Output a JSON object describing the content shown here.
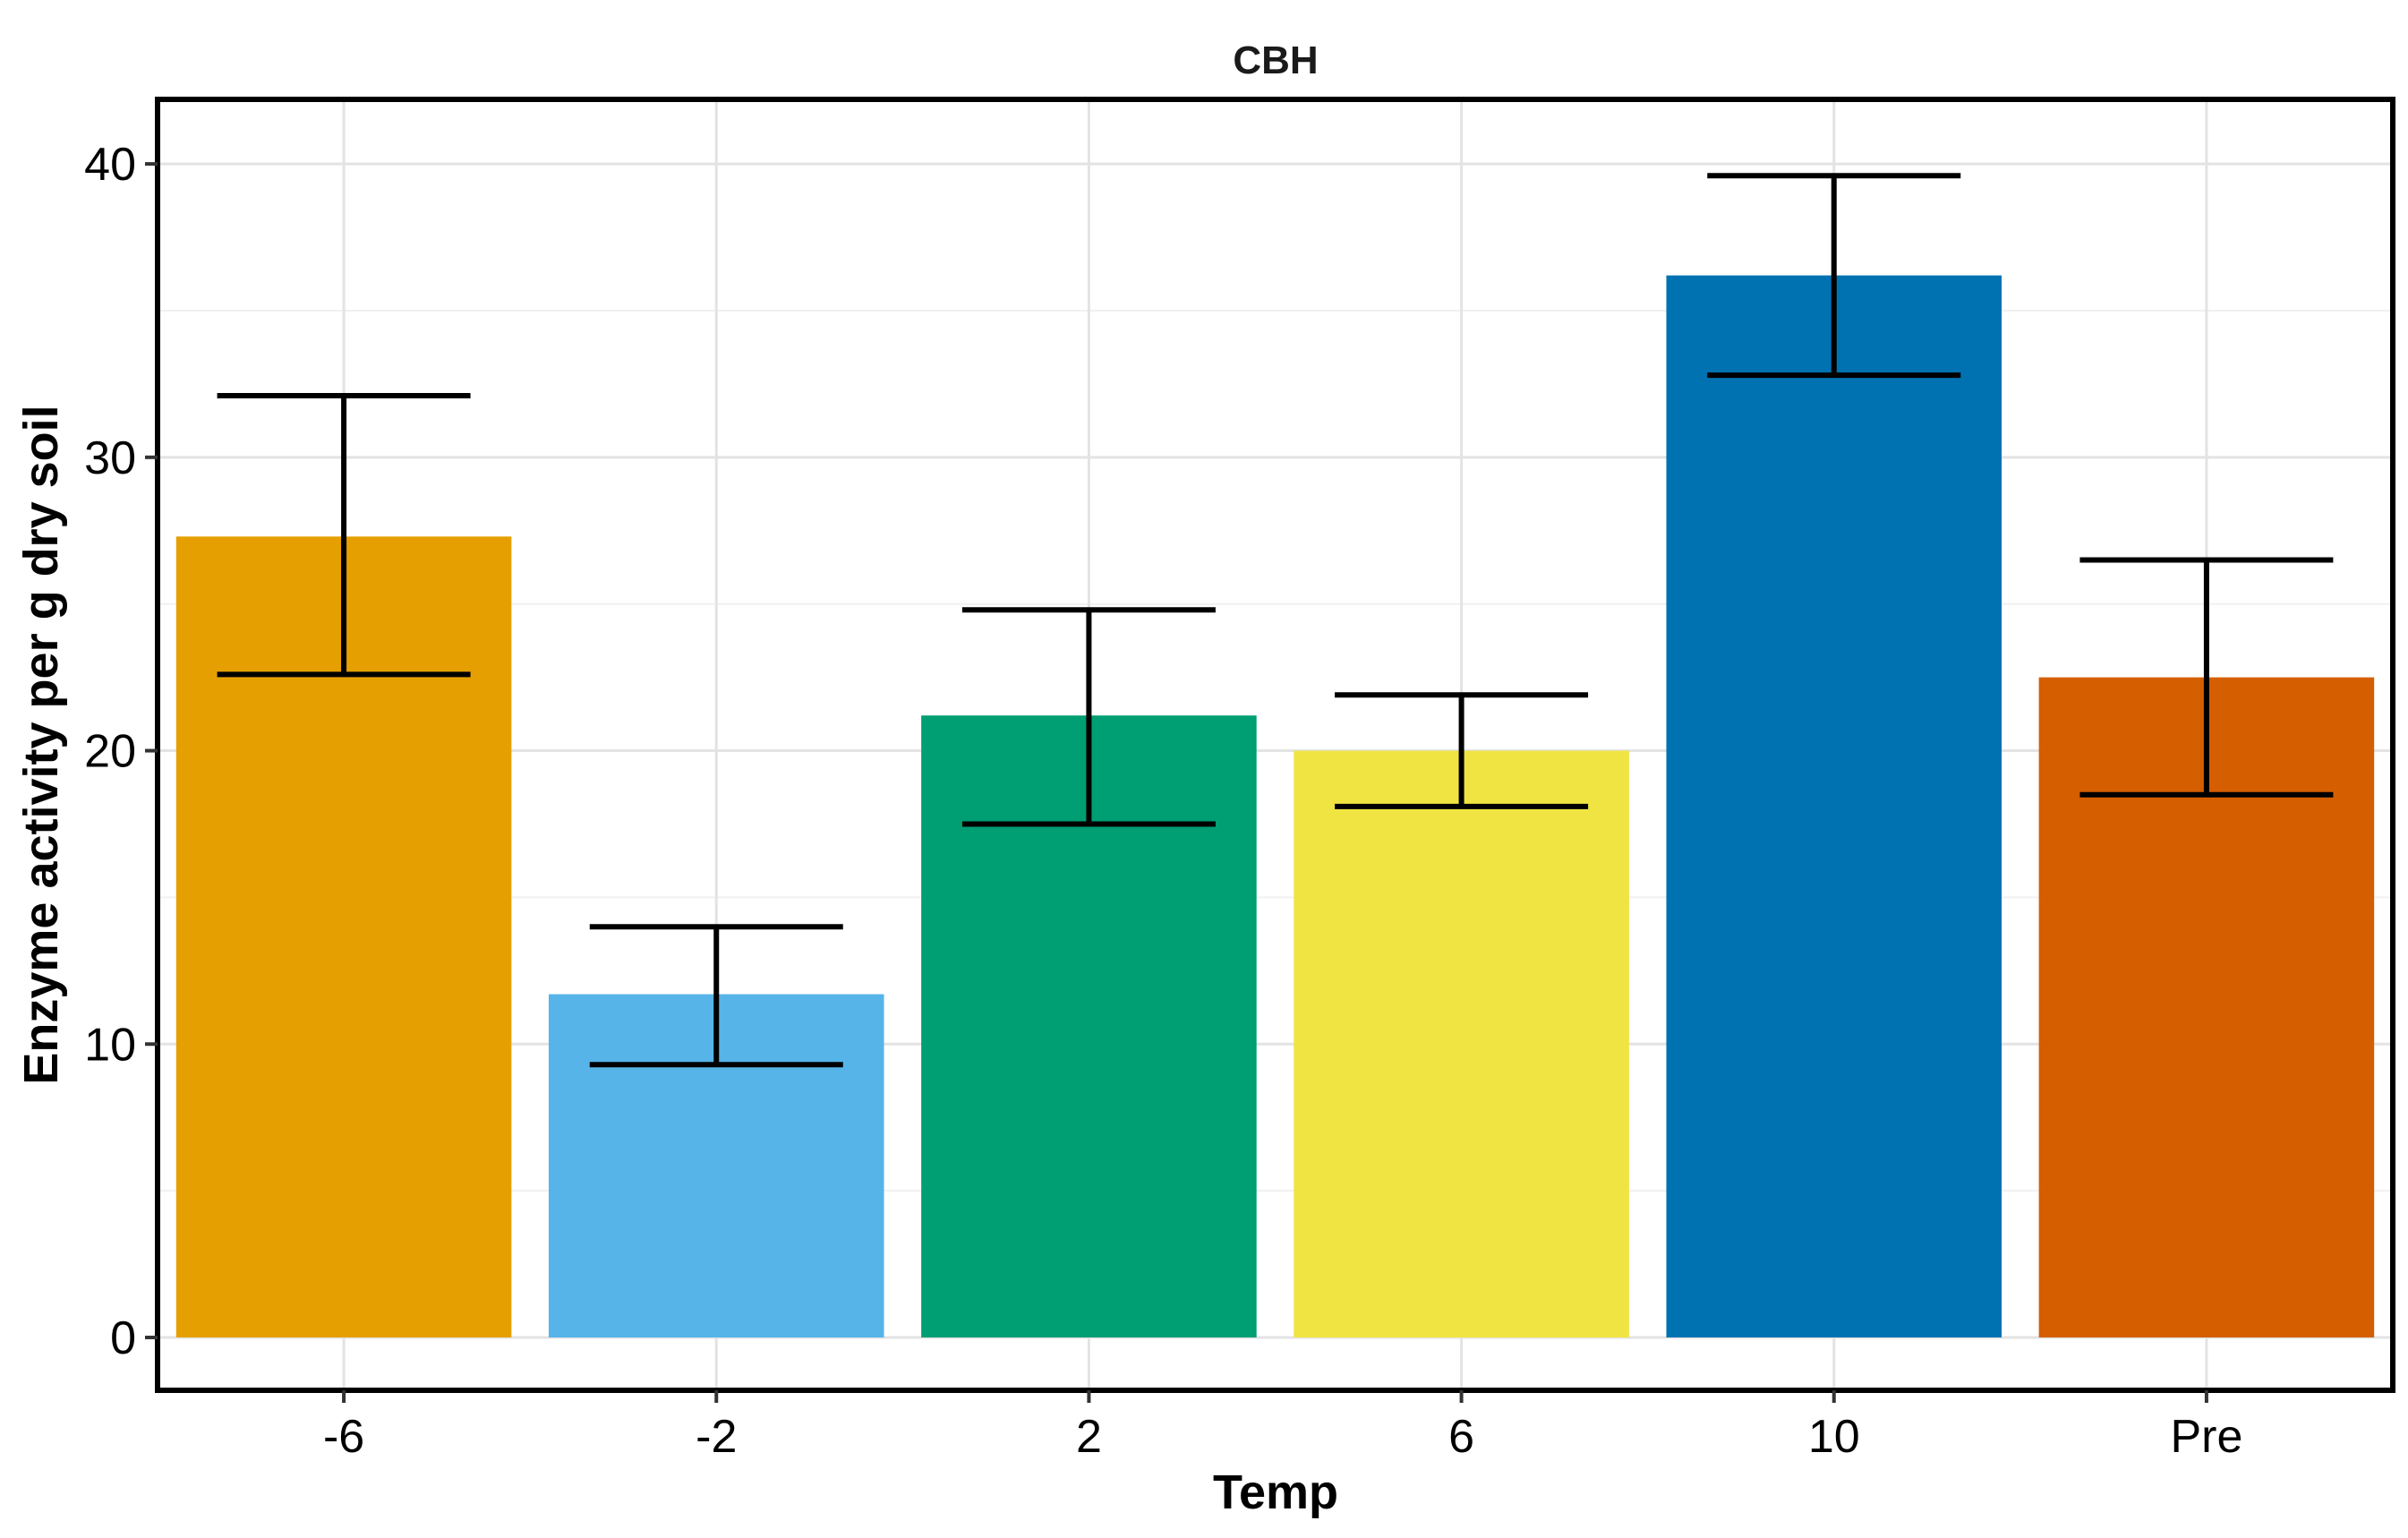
{
  "chart_data": {
    "type": "bar",
    "title": "CBH",
    "xlabel": "Temp",
    "ylabel": "Enzyme activity per g dry soil",
    "categories": [
      "-6",
      "-2",
      "2",
      "6",
      "10",
      "Pre"
    ],
    "values": [
      27.3,
      11.7,
      21.2,
      20.0,
      36.2,
      22.5
    ],
    "error_lower": [
      22.6,
      9.3,
      17.5,
      18.1,
      32.8,
      18.5
    ],
    "error_upper": [
      32.1,
      14.0,
      24.8,
      21.9,
      39.6,
      26.5
    ],
    "colors": [
      "#E69F00",
      "#56B4E9",
      "#009E73",
      "#F0E442",
      "#0072B2",
      "#D55E00"
    ],
    "ylim": [
      -1.8,
      42.2
    ],
    "yticks": [
      0,
      10,
      20,
      30,
      40
    ],
    "grid": true,
    "legend": "none"
  }
}
